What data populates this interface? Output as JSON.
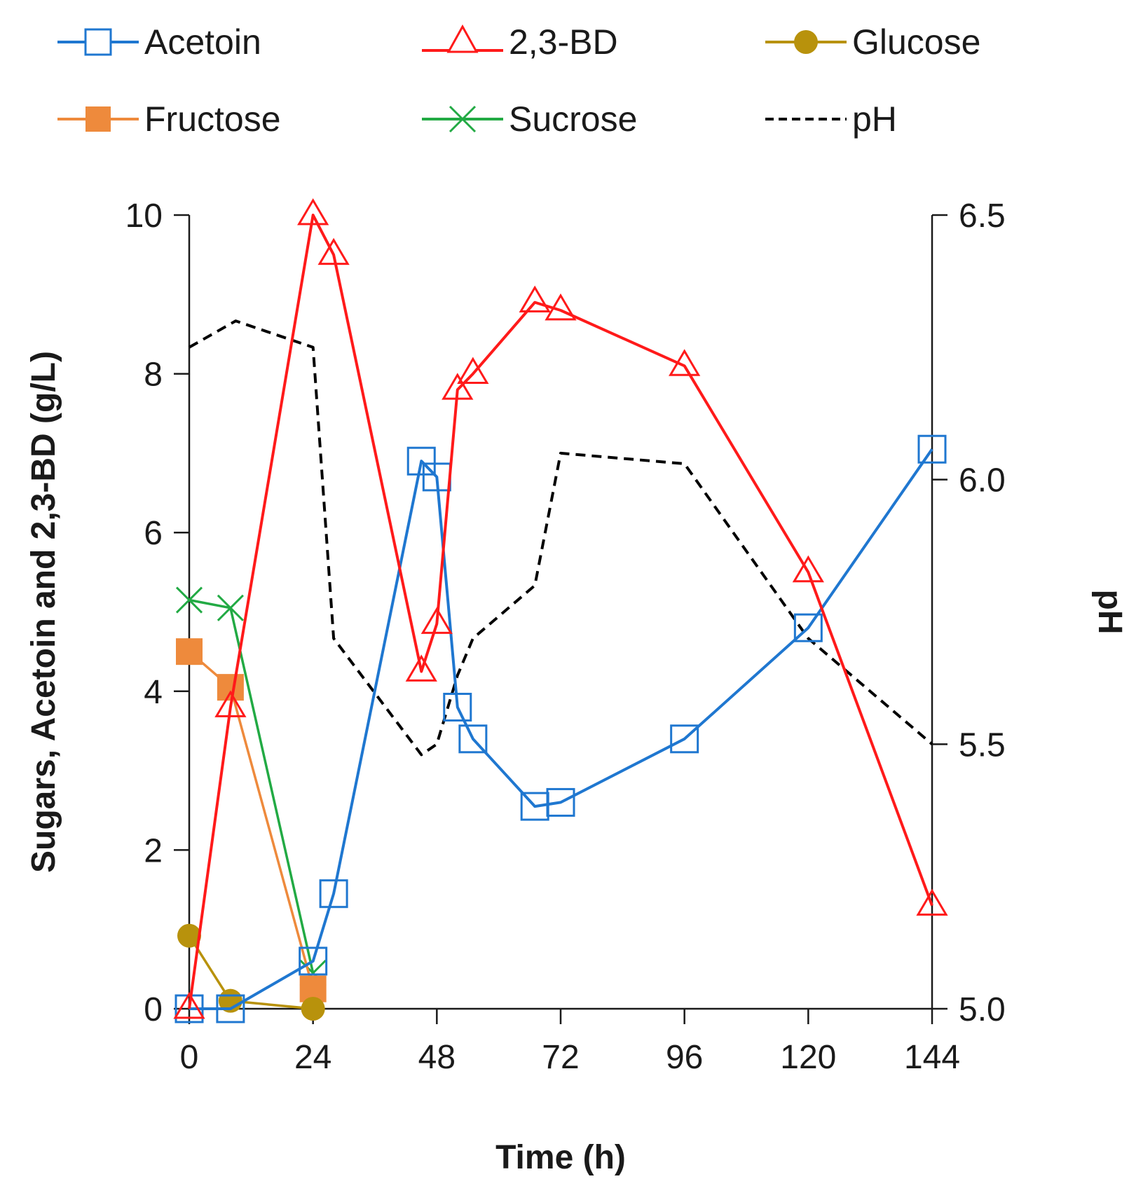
{
  "chart_data": {
    "type": "line",
    "title": "",
    "xlabel": "Time (h)",
    "ylabel": "Sugars, Acetoin and 2,3-BD (g/L)",
    "y2label": "pH",
    "xlim": [
      0,
      144
    ],
    "ylim": [
      0,
      10
    ],
    "y2lim": [
      5.0,
      6.5
    ],
    "xticks": [
      "0",
      "24",
      "48",
      "72",
      "96",
      "120",
      "144"
    ],
    "yticks": [
      "0",
      "2",
      "4",
      "6",
      "8",
      "10"
    ],
    "y2ticks": [
      "5.0",
      "5.5",
      "6.0",
      "6.5"
    ],
    "grid": false,
    "legend_position": "top",
    "series": [
      {
        "name": "Acetoin",
        "axis": "left",
        "color": "#1f77d0",
        "marker": "open-square",
        "x": [
          0,
          8,
          24,
          28,
          45,
          48,
          52,
          55,
          67,
          72,
          96,
          120,
          144
        ],
        "y": [
          0,
          0,
          0.6,
          1.45,
          6.9,
          6.7,
          3.8,
          3.4,
          2.55,
          2.6,
          3.4,
          4.8,
          7.05
        ]
      },
      {
        "name": "2,3-BD",
        "axis": "left",
        "color": "#ff1a1a",
        "marker": "open-triangle",
        "x": [
          0,
          8,
          24,
          28,
          45,
          48,
          52,
          55,
          67,
          72,
          96,
          120,
          144
        ],
        "y": [
          0,
          3.8,
          10.0,
          9.5,
          4.25,
          4.85,
          7.8,
          8.0,
          8.9,
          8.8,
          8.1,
          5.5,
          1.3
        ]
      },
      {
        "name": "Glucose",
        "axis": "left",
        "color": "#b8920c",
        "marker": "filled-circle",
        "x": [
          0,
          8,
          24
        ],
        "y": [
          0.92,
          0.1,
          0.0
        ]
      },
      {
        "name": "Fructose",
        "axis": "left",
        "color": "#ee8a3c",
        "marker": "filled-square",
        "x": [
          0,
          8,
          24
        ],
        "y": [
          4.5,
          4.05,
          0.25
        ]
      },
      {
        "name": "Sucrose",
        "axis": "left",
        "color": "#22aa44",
        "marker": "x",
        "x": [
          0,
          8,
          24
        ],
        "y": [
          5.15,
          5.05,
          0.45
        ]
      },
      {
        "name": "pH",
        "axis": "right",
        "color": "#000000",
        "marker": "none",
        "dash": true,
        "x": [
          0,
          9,
          24,
          28,
          45,
          48,
          52,
          55,
          67,
          72,
          96,
          120,
          144
        ],
        "y": [
          6.25,
          6.3,
          6.25,
          5.7,
          5.48,
          5.5,
          5.63,
          5.7,
          5.8,
          6.05,
          6.03,
          5.7,
          5.5
        ]
      }
    ]
  },
  "legend": {
    "items": [
      {
        "label": "Acetoin",
        "color": "#1f77d0",
        "marker": "open-square",
        "icon": "open-square-icon"
      },
      {
        "label": "2,3-BD",
        "color": "#ff1a1a",
        "marker": "open-triangle",
        "icon": "open-triangle-icon"
      },
      {
        "label": "Glucose",
        "color": "#b8920c",
        "marker": "filled-circle",
        "icon": "filled-circle-icon"
      },
      {
        "label": "Fructose",
        "color": "#ee8a3c",
        "marker": "filled-square",
        "icon": "filled-square-icon"
      },
      {
        "label": "Sucrose",
        "color": "#22aa44",
        "marker": "x",
        "icon": "cross-icon"
      },
      {
        "label": "pH",
        "color": "#000000",
        "marker": "none",
        "icon": "dashed-line-icon"
      }
    ]
  }
}
